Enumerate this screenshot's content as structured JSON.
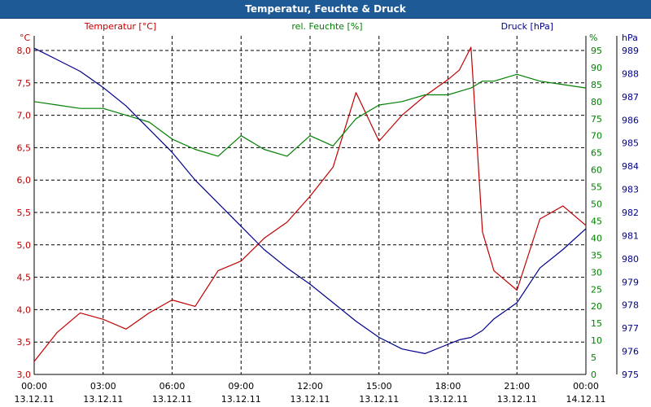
{
  "chart_data": {
    "type": "line",
    "title": "Temperatur, Feuchte & Druck",
    "x_ticks": [
      {
        "time": "00:00",
        "date": "13.12.11"
      },
      {
        "time": "03:00",
        "date": "13.12.11"
      },
      {
        "time": "06:00",
        "date": "13.12.11"
      },
      {
        "time": "09:00",
        "date": "13.12.11"
      },
      {
        "time": "12:00",
        "date": "13.12.11"
      },
      {
        "time": "15:00",
        "date": "13.12.11"
      },
      {
        "time": "18:00",
        "date": "13.12.11"
      },
      {
        "time": "21:00",
        "date": "13.12.11"
      },
      {
        "time": "00:00",
        "date": "14.12.11"
      }
    ],
    "x_hours": [
      0,
      1,
      2,
      3,
      4,
      5,
      6,
      7,
      8,
      9,
      10,
      11,
      12,
      13,
      14,
      15,
      16,
      17,
      18,
      18.5,
      19,
      19.5,
      20,
      21,
      22,
      23,
      24
    ],
    "grid": true,
    "axes": {
      "temperature": {
        "unit": "°C",
        "ylim": [
          3.0,
          8.0
        ],
        "ticks": [
          "3,0",
          "3,5",
          "4,0",
          "4,5",
          "5,0",
          "5,5",
          "6,0",
          "6,5",
          "7,0",
          "7,5",
          "8,0"
        ],
        "color": "#c00000"
      },
      "humidity": {
        "unit": "%",
        "ylim": [
          0,
          95
        ],
        "ticks": [
          "0",
          "5",
          "10",
          "15",
          "20",
          "25",
          "30",
          "35",
          "40",
          "45",
          "50",
          "55",
          "60",
          "65",
          "70",
          "75",
          "80",
          "85",
          "90",
          "95"
        ],
        "color": "#008000"
      },
      "pressure": {
        "unit": "hPa",
        "ylim": [
          975,
          989
        ],
        "ticks": [
          "975",
          "976",
          "977",
          "978",
          "979",
          "980",
          "981",
          "982",
          "983",
          "984",
          "985",
          "986",
          "987",
          "988",
          "989"
        ],
        "color": "#00008c"
      }
    },
    "series": [
      {
        "name": "Temperatur [°C]",
        "axis": "temperature",
        "color": "#c00000",
        "values": [
          3.2,
          3.65,
          3.95,
          3.85,
          3.7,
          3.95,
          4.15,
          4.05,
          4.6,
          4.75,
          5.1,
          5.35,
          5.75,
          6.2,
          7.35,
          6.6,
          7.0,
          7.3,
          7.55,
          7.7,
          8.05,
          5.2,
          4.6,
          4.3,
          5.4,
          5.6,
          5.3
        ]
      },
      {
        "name": "rel. Feuchte [%]",
        "axis": "humidity",
        "color": "#008000",
        "values": [
          80,
          79,
          78,
          78,
          76,
          74,
          69,
          66,
          64,
          70,
          66,
          64,
          70,
          67,
          75,
          79,
          80,
          82,
          82,
          83,
          84,
          86,
          86,
          88,
          86,
          85,
          84
        ]
      },
      {
        "name": "Druck [hPa]",
        "axis": "pressure",
        "color": "#00008c",
        "values": [
          989.1,
          988.6,
          988.1,
          987.4,
          986.6,
          985.6,
          984.6,
          983.4,
          982.4,
          981.4,
          980.4,
          979.6,
          978.9,
          978.1,
          977.3,
          976.6,
          976.1,
          975.9,
          976.3,
          976.5,
          976.6,
          976.9,
          977.4,
          978.1,
          979.6,
          980.4,
          981.3
        ]
      }
    ]
  }
}
